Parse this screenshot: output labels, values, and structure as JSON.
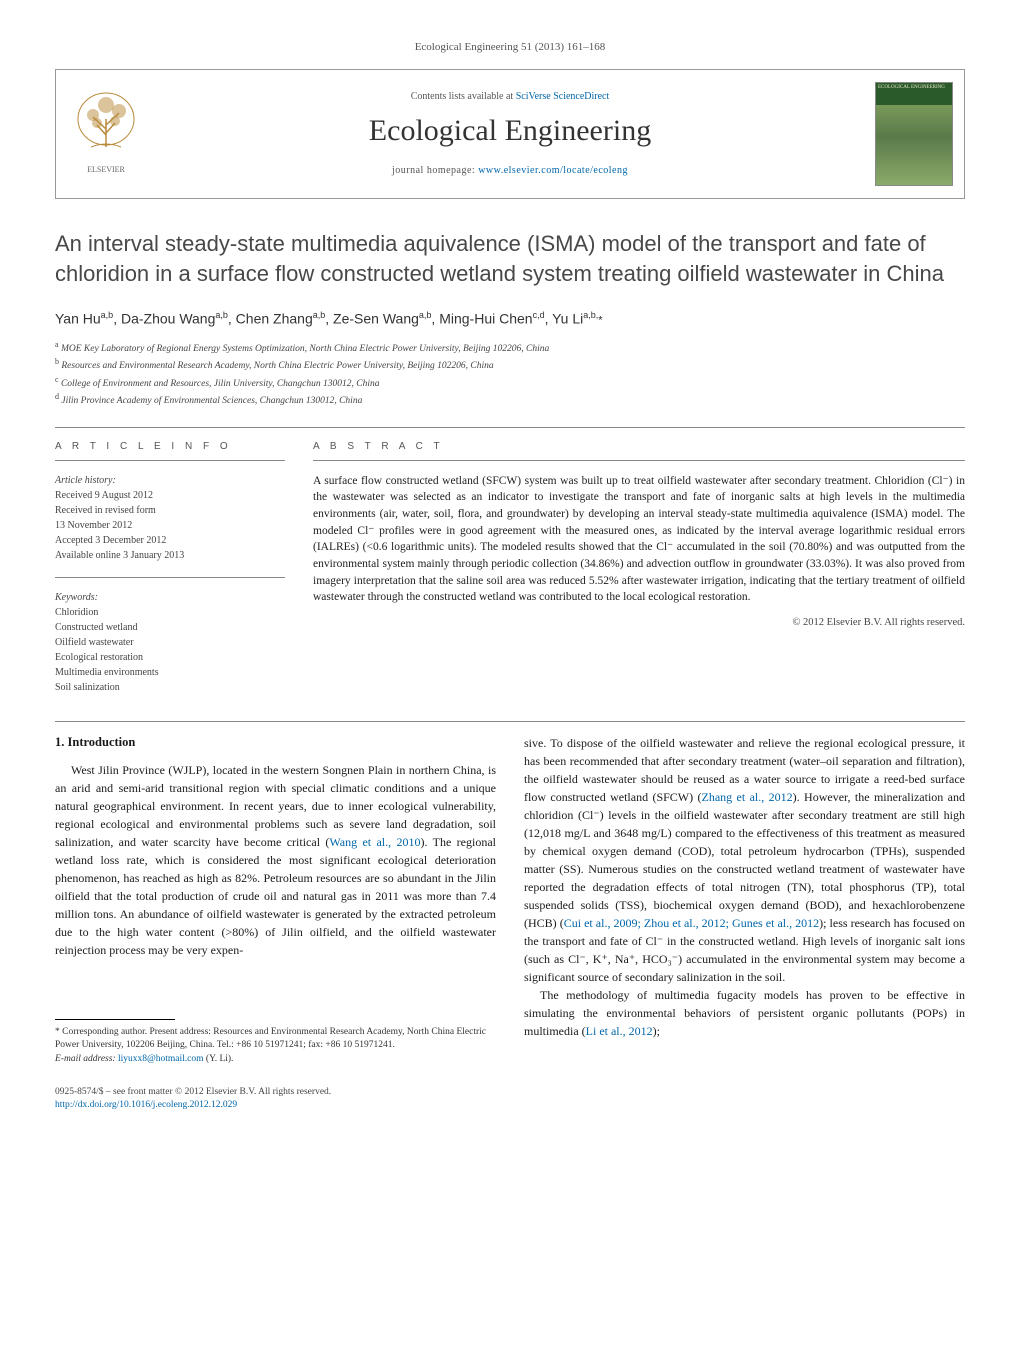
{
  "journal_ref": "Ecological Engineering 51 (2013) 161–168",
  "header": {
    "contents_prefix": "Contents lists available at ",
    "contents_link": "SciVerse ScienceDirect",
    "journal_name": "Ecological Engineering",
    "homepage_prefix": "journal homepage: ",
    "homepage_link": "www.elsevier.com/locate/ecoleng",
    "cover_title": "ECOLOGICAL ENGINEERING"
  },
  "title": "An interval steady-state multimedia aquivalence (ISMA) model of the transport and fate of chloridion in a surface flow constructed wetland system treating oilfield wastewater in China",
  "authors_html": "Yan Hu<sup>a,b</sup>, Da-Zhou Wang<sup>a,b</sup>, Chen Zhang<sup>a,b</sup>, Ze-Sen Wang<sup>a,b</sup>, Ming-Hui Chen<sup>c,d</sup>, Yu Li<sup>a,b,</sup><span class='corr'>*</span>",
  "affiliations": [
    {
      "key": "a",
      "text": "MOE Key Laboratory of Regional Energy Systems Optimization, North China Electric Power University, Beijing 102206, China"
    },
    {
      "key": "b",
      "text": "Resources and Environmental Research Academy, North China Electric Power University, Beijing 102206, China"
    },
    {
      "key": "c",
      "text": "College of Environment and Resources, Jilin University, Changchun 130012, China"
    },
    {
      "key": "d",
      "text": "Jilin Province Academy of Environmental Sciences, Changchun 130012, China"
    }
  ],
  "article_info": {
    "label": "A R T I C L E   I N F O",
    "history_label": "Article history:",
    "history": [
      "Received 9 August 2012",
      "Received in revised form",
      "13 November 2012",
      "Accepted 3 December 2012",
      "Available online 3 January 2013"
    ],
    "keywords_label": "Keywords:",
    "keywords": [
      "Chloridion",
      "Constructed wetland",
      "Oilfield wastewater",
      "Ecological restoration",
      "Multimedia environments",
      "Soil salinization"
    ]
  },
  "abstract": {
    "label": "A B S T R A C T",
    "text": "A surface flow constructed wetland (SFCW) system was built up to treat oilfield wastewater after secondary treatment. Chloridion (Cl⁻) in the wastewater was selected as an indicator to investigate the transport and fate of inorganic salts at high levels in the multimedia environments (air, water, soil, flora, and groundwater) by developing an interval steady-state multimedia aquivalence (ISMA) model. The modeled Cl⁻ profiles were in good agreement with the measured ones, as indicated by the interval average logarithmic residual errors (IALREs) (<0.6 logarithmic units). The modeled results showed that the Cl⁻ accumulated in the soil (70.80%) and was outputted from the environmental system mainly through periodic collection (34.86%) and advection outflow in groundwater (33.03%). It was also proved from imagery interpretation that the saline soil area was reduced 5.52% after wastewater irrigation, indicating that the tertiary treatment of oilfield wastewater through the constructed wetland was contributed to the local ecological restoration.",
    "copyright": "© 2012 Elsevier B.V. All rights reserved."
  },
  "body": {
    "section_heading": "1.  Introduction",
    "col1": "West Jilin Province (WJLP), located in the western Songnen Plain in northern China, is an arid and semi-arid transitional region with special climatic conditions and a unique natural geographical environment. In recent years, due to inner ecological vulnerability, regional ecological and environmental problems such as severe land degradation, soil salinization, and water scarcity have become critical (<a class='ref-link' data-name='citation-link' data-interactable='true'>Wang et al., 2010</a>). The regional wetland loss rate, which is considered the most significant ecological deterioration phenomenon, has reached as high as 82%. Petroleum resources are so abundant in the Jilin oilfield that the total production of crude oil and natural gas in 2011 was more than 7.4 million tons. An abundance of oilfield wastewater is generated by the extracted petroleum due to the high water content (>80%) of Jilin oilfield, and the oilfield wastewater reinjection process may be very expen-",
    "col2_p1": "sive. To dispose of the oilfield wastewater and relieve the regional ecological pressure, it has been recommended that after secondary treatment (water–oil separation and filtration), the oilfield wastewater should be reused as a water source to irrigate a reed-bed surface flow constructed wetland (SFCW) (<a class='ref-link' data-name='citation-link' data-interactable='true'>Zhang et al., 2012</a>). However, the mineralization and chloridion (Cl⁻) levels in the oilfield wastewater after secondary treatment are still high (12,018 mg/L and 3648 mg/L) compared to the effectiveness of this treatment as measured by chemical oxygen demand (COD), total petroleum hydrocarbon (TPHs), suspended matter (SS). Numerous studies on the constructed wetland treatment of wastewater have reported the degradation effects of total nitrogen (TN), total phosphorus (TP), total suspended solids (TSS), biochemical oxygen demand (BOD), and hexachlorobenzene (HCB) (<a class='ref-link' data-name='citation-link' data-interactable='true'>Cui et al., 2009; Zhou et al., 2012; Gunes et al., 2012</a>); less research has focused on the transport and fate of Cl⁻ in the constructed wetland. High levels of inorganic salt ions (such as Cl⁻, K⁺, Na⁺, HCO₃⁻) accumulated in the environmental system may become a significant source of secondary salinization in the soil.",
    "col2_p2": "The methodology of multimedia fugacity models has proven to be effective in simulating the environmental behaviors of persistent organic pollutants (POPs) in multimedia (<a class='ref-link' data-name='citation-link' data-interactable='true'>Li et al., 2012</a>);"
  },
  "footnote": {
    "corr_label": "* Corresponding author. Present address: Resources and Environmental Research Academy, North China Electric Power University, 102206 Beijing, China. Tel.: +86 10 51971241; fax: +86 10 51971241.",
    "email_label": "E-mail address: ",
    "email": "liyuxx8@hotmail.com",
    "email_suffix": " (Y. Li)."
  },
  "bottom": {
    "issn_line": "0925-8574/$ – see front matter © 2012 Elsevier B.V. All rights reserved.",
    "doi": "http://dx.doi.org/10.1016/j.ecoleng.2012.12.029"
  },
  "colors": {
    "link": "#0066aa",
    "text": "#1a1a1a",
    "muted": "#555555",
    "border": "#999999",
    "cover_green": "#2a5a2a"
  },
  "typography": {
    "body_pt": 12,
    "title_pt": 22,
    "journal_pt": 30,
    "abstract_pt": 11.5,
    "info_pt": 10,
    "footnote_pt": 9.5
  }
}
